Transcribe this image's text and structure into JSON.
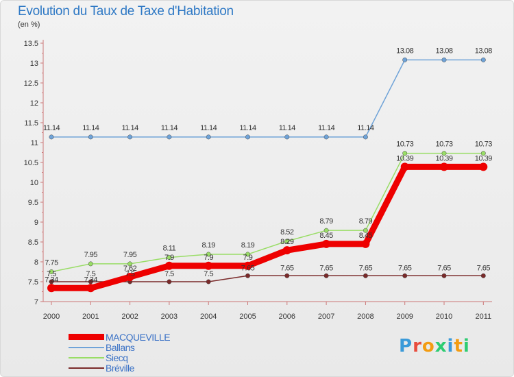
{
  "header": {
    "title": "Evolution du Taux de Taxe d'Habitation",
    "subtitle": "(en %)"
  },
  "brand": {
    "name": "Proxiti",
    "letters": [
      "P",
      "r",
      "o",
      "x",
      "i",
      "t",
      "i"
    ],
    "colors": [
      "#3a9ad9",
      "#e84c3d",
      "#f39c12",
      "#2ecc71",
      "#3a9ad9",
      "#f39c12",
      "#2ecc71"
    ]
  },
  "chart_data": {
    "type": "line",
    "title": "Evolution du Taux de Taxe d'Habitation",
    "subtitle": "(en %)",
    "xlabel": "",
    "ylabel": "",
    "x": [
      "2000",
      "2001",
      "2002",
      "2003",
      "2004",
      "2005",
      "2006",
      "2007",
      "2008",
      "2009",
      "2010",
      "2011"
    ],
    "ylim": [
      7,
      13.5
    ],
    "yticks": [
      "7",
      "7.5",
      "8",
      "8.5",
      "9",
      "9.5",
      "10",
      "10.5",
      "11",
      "11.5",
      "12",
      "12.5",
      "13",
      "13.5"
    ],
    "grid": false,
    "legend_position": "bottom-left",
    "series": [
      {
        "name": "MACQUEVILLE",
        "color": "#ee0000",
        "values": [
          7.34,
          7.34,
          7.62,
          7.9,
          7.9,
          7.9,
          8.29,
          8.45,
          8.45,
          10.39,
          10.39,
          10.39
        ],
        "labels": [
          "7.34",
          "7.34",
          "7.62",
          "7.9",
          "7.9",
          "7.9",
          "8.29",
          "8.45",
          "8.45",
          "10.39",
          "10.39",
          "10.39"
        ]
      },
      {
        "name": "Ballans",
        "color": "#6fa3d8",
        "values": [
          11.14,
          11.14,
          11.14,
          11.14,
          11.14,
          11.14,
          11.14,
          11.14,
          11.14,
          13.08,
          13.08,
          13.08
        ],
        "labels": [
          "11.14",
          "11.14",
          "11.14",
          "11.14",
          "11.14",
          "11.14",
          "11.14",
          "11.14",
          "11.14",
          "13.08",
          "13.08",
          "13.08"
        ]
      },
      {
        "name": "Siecq",
        "color": "#99dd66",
        "values": [
          7.75,
          7.95,
          7.95,
          8.11,
          8.19,
          8.19,
          8.52,
          8.79,
          8.79,
          10.73,
          10.73,
          10.73
        ],
        "labels": [
          "7.75",
          "7.95",
          "7.95",
          "8.11",
          "8.19",
          "8.19",
          "8.52",
          "8.79",
          "8.79",
          "10.73",
          "10.73",
          "10.73"
        ]
      },
      {
        "name": "Bréville",
        "color": "#7a2a2a",
        "values": [
          7.5,
          7.5,
          7.5,
          7.5,
          7.5,
          7.65,
          7.65,
          7.65,
          7.65,
          7.65,
          7.65,
          7.65
        ],
        "labels": [
          "7.5",
          "7.5",
          "7.5",
          "7.5",
          "7.5",
          "7.65",
          "7.65",
          "7.65",
          "7.65",
          "7.65",
          "7.65",
          "7.65"
        ]
      }
    ]
  }
}
